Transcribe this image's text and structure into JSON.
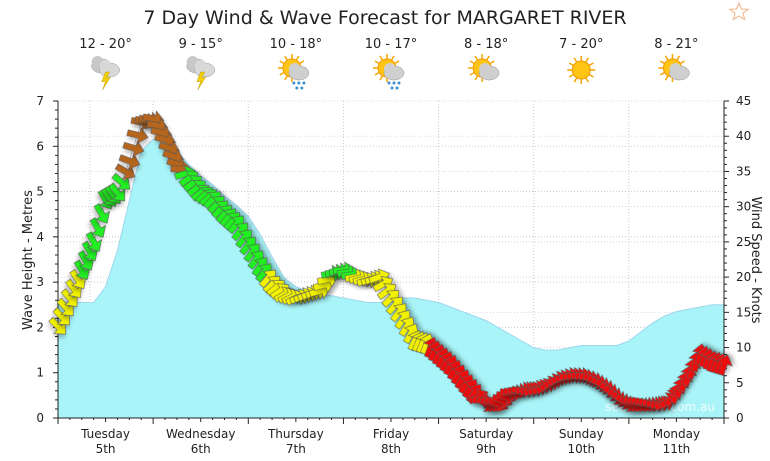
{
  "header": {
    "title": "7 Day Wind & Wave Forecast for MARGARET RIVER",
    "favourite_icon": "star-outline-icon"
  },
  "days": [
    {
      "day": "Tuesday",
      "date": "5th",
      "temp": "12 - 20°",
      "icon": "thunderstorm-icon"
    },
    {
      "day": "Wednesday",
      "date": "6th",
      "temp": "9 - 15°",
      "icon": "thunderstorm-icon"
    },
    {
      "day": "Thursday",
      "date": "7th",
      "temp": "10 - 18°",
      "icon": "partly-cloudy-rain-icon"
    },
    {
      "day": "Friday",
      "date": "8th",
      "temp": "10 - 17°",
      "icon": "partly-cloudy-rain-icon"
    },
    {
      "day": "Saturday",
      "date": "9th",
      "temp": "8 - 18°",
      "icon": "partly-cloudy-icon"
    },
    {
      "day": "Sunday",
      "date": "10th",
      "temp": "7 - 20°",
      "icon": "sunny-icon"
    },
    {
      "day": "Monday",
      "date": "11th",
      "temp": "8 - 21°",
      "icon": "partly-cloudy-icon"
    }
  ],
  "watermark": "seabreeze.com.au",
  "chart_data": {
    "type": "area+wind-arrows",
    "title": "7 Day Wind & Wave Forecast for MARGARET RIVER",
    "ylabel": "Wave Height - Metres",
    "y2label": "Wind Speed - Knots",
    "ylim": [
      0,
      7
    ],
    "y2lim": [
      0,
      45
    ],
    "yticks": [
      "0",
      "1",
      "2",
      "3",
      "4",
      "5",
      "6",
      "7"
    ],
    "y2ticks": [
      "0",
      "5",
      "10",
      "15",
      "20",
      "25",
      "30",
      "35",
      "40",
      "45"
    ],
    "x_step_hours": 3,
    "x_start": "Tuesday 5th 00:00",
    "grid": true,
    "colors": {
      "wave_fill": "#a8f4f8",
      "wave_line": "#9fd6ee",
      "wind_light": "#ee1111",
      "wind_moderate": "#f2f200",
      "wind_strong": "#22ee22",
      "wind_gale": "#b5651d"
    },
    "wave_height_m": [
      2.6,
      2.55,
      2.55,
      2.55,
      2.9,
      3.7,
      4.8,
      5.9,
      6.15,
      6.2,
      5.9,
      5.6,
      5.35,
      5.15,
      4.9,
      4.7,
      4.45,
      4.05,
      3.55,
      3.1,
      2.9,
      2.8,
      2.75,
      2.7,
      2.65,
      2.6,
      2.55,
      2.55,
      2.6,
      2.65,
      2.65,
      2.6,
      2.55,
      2.45,
      2.35,
      2.25,
      2.15,
      2.0,
      1.85,
      1.7,
      1.55,
      1.5,
      1.5,
      1.55,
      1.6,
      1.6,
      1.6,
      1.6,
      1.7,
      1.9,
      2.1,
      2.25,
      2.35,
      2.4,
      2.45,
      2.5,
      2.5
    ],
    "wind_speed_kn": [
      13,
      17,
      21,
      25,
      31,
      32,
      36.5,
      42,
      42.5,
      39.5,
      36,
      34,
      32,
      31,
      29,
      27.5,
      24.5,
      21.5,
      19,
      17.5,
      17,
      17.5,
      18,
      20.5,
      21,
      20,
      19.5,
      20,
      17,
      14,
      11,
      10.5,
      9,
      7.5,
      5.5,
      3.5,
      2,
      2,
      3.5,
      4,
      4,
      4.5,
      5.5,
      6,
      6,
      5.5,
      4.5,
      3,
      2,
      2,
      2,
      2,
      3.5,
      6,
      9,
      8,
      7.5
    ],
    "wind_from_deg": [
      315,
      320,
      330,
      330,
      330,
      320,
      290,
      280,
      280,
      285,
      290,
      235,
      230,
      225,
      220,
      220,
      220,
      215,
      225,
      240,
      245,
      250,
      255,
      260,
      265,
      260,
      255,
      250,
      225,
      215,
      205,
      200,
      200,
      205,
      210,
      215,
      300,
      295,
      280,
      270,
      250,
      240,
      250,
      260,
      270,
      290,
      300,
      305,
      300,
      295,
      280,
      250,
      200,
      195,
      190,
      195,
      200
    ]
  }
}
